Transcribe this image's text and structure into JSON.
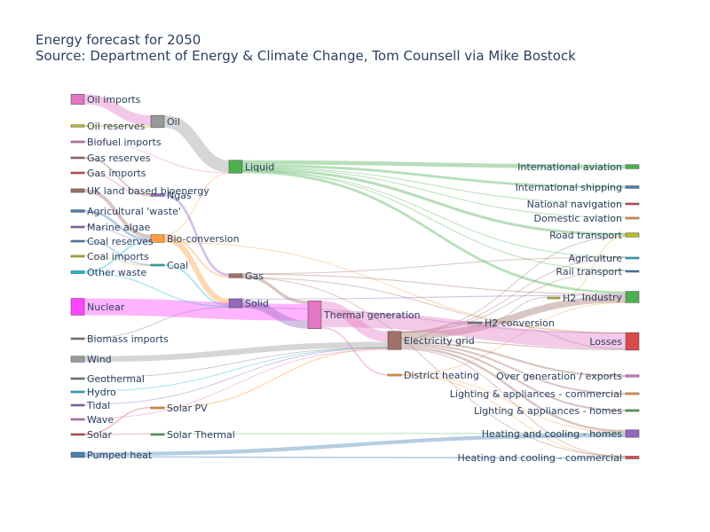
{
  "title": "Energy forecast for 2050",
  "subtitle": "Source: Department of Energy & Climate Change, Tom Counsell via Mike Bostock",
  "chart_data": {
    "type": "sankey",
    "units": "TWh",
    "nodes": [
      {
        "name": "Agricultural 'waste'",
        "color": "#4682b4"
      },
      {
        "name": "Bio-conversion",
        "color": "#ff9e3d"
      },
      {
        "name": "Liquid",
        "color": "#4caf50"
      },
      {
        "name": "Losses",
        "color": "#d94a4a"
      },
      {
        "name": "Solid",
        "color": "#9467bd"
      },
      {
        "name": "Gas",
        "color": "#a0716a"
      },
      {
        "name": "Biofuel imports",
        "color": "#e377c2"
      },
      {
        "name": "Biomass imports",
        "color": "#7f7f7f"
      },
      {
        "name": "Coal imports",
        "color": "#bcbd22"
      },
      {
        "name": "Coal",
        "color": "#17becf"
      },
      {
        "name": "Coal reserves",
        "color": "#4682b4"
      },
      {
        "name": "District heating",
        "color": "#ff9e3d"
      },
      {
        "name": "Industry",
        "color": "#4caf50"
      },
      {
        "name": "Heating and cooling - commercial",
        "color": "#d94a4a"
      },
      {
        "name": "Heating and cooling - homes",
        "color": "#9467bd"
      },
      {
        "name": "Electricity grid",
        "color": "#a0716a"
      },
      {
        "name": "Over generation / exports",
        "color": "#e377c2"
      },
      {
        "name": "H2 conversion",
        "color": "#7f7f7f"
      },
      {
        "name": "Road transport",
        "color": "#bcbd22"
      },
      {
        "name": "Agriculture",
        "color": "#17becf"
      },
      {
        "name": "Rail transport",
        "color": "#4682b4"
      },
      {
        "name": "Lighting & appliances - commercial",
        "color": "#ff9e3d"
      },
      {
        "name": "Lighting & appliances - homes",
        "color": "#4caf50"
      },
      {
        "name": "Gas imports",
        "color": "#d94a4a"
      },
      {
        "name": "Ngas",
        "color": "#9467bd"
      },
      {
        "name": "Gas reserves",
        "color": "#a0716a"
      },
      {
        "name": "Thermal generation",
        "color": "#e377c2"
      },
      {
        "name": "Geothermal",
        "color": "#7f7f7f"
      },
      {
        "name": "H2",
        "color": "#bcbd22"
      },
      {
        "name": "Hydro",
        "color": "#17becf"
      },
      {
        "name": "International shipping",
        "color": "#4682b4"
      },
      {
        "name": "Domestic aviation",
        "color": "#ff9e3d"
      },
      {
        "name": "International aviation",
        "color": "#4caf50"
      },
      {
        "name": "National navigation",
        "color": "#d94a4a"
      },
      {
        "name": "Marine algae",
        "color": "#9467bd"
      },
      {
        "name": "Nuclear",
        "color": "#ff44ff"
      },
      {
        "name": "Oil imports",
        "color": "#e377c2"
      },
      {
        "name": "Oil",
        "color": "#999999"
      },
      {
        "name": "Oil reserves",
        "color": "#bcbd22"
      },
      {
        "name": "Other waste",
        "color": "#17becf"
      },
      {
        "name": "Pumped heat",
        "color": "#4682b4"
      },
      {
        "name": "Solar PV",
        "color": "#ff9e3d"
      },
      {
        "name": "Solar Thermal",
        "color": "#4caf50"
      },
      {
        "name": "Solar",
        "color": "#d94a4a"
      },
      {
        "name": "Tidal",
        "color": "#9467bd"
      },
      {
        "name": "UK land based bioenergy",
        "color": "#a0716a"
      },
      {
        "name": "Wave",
        "color": "#e377c2"
      },
      {
        "name": "Wind",
        "color": "#999999"
      }
    ],
    "links": [
      {
        "source": 0,
        "target": 1,
        "value": 124.729
      },
      {
        "source": 1,
        "target": 2,
        "value": 0.597
      },
      {
        "source": 1,
        "target": 3,
        "value": 26.862
      },
      {
        "source": 1,
        "target": 4,
        "value": 280.322
      },
      {
        "source": 1,
        "target": 5,
        "value": 81.144
      },
      {
        "source": 6,
        "target": 2,
        "value": 35
      },
      {
        "source": 7,
        "target": 4,
        "value": 35
      },
      {
        "source": 8,
        "target": 9,
        "value": 11.606
      },
      {
        "source": 10,
        "target": 9,
        "value": 63.965
      },
      {
        "source": 9,
        "target": 4,
        "value": 75.571
      },
      {
        "source": 11,
        "target": 12,
        "value": 10.639
      },
      {
        "source": 11,
        "target": 13,
        "value": 22.505
      },
      {
        "source": 11,
        "target": 14,
        "value": 46.184
      },
      {
        "source": 15,
        "target": 16,
        "value": 104.453
      },
      {
        "source": 15,
        "target": 14,
        "value": 113.726
      },
      {
        "source": 15,
        "target": 17,
        "value": 27.14
      },
      {
        "source": 15,
        "target": 12,
        "value": 342.165
      },
      {
        "source": 15,
        "target": 18,
        "value": 37.797
      },
      {
        "source": 15,
        "target": 19,
        "value": 4.412
      },
      {
        "source": 15,
        "target": 13,
        "value": 40.858
      },
      {
        "source": 15,
        "target": 3,
        "value": 56.691
      },
      {
        "source": 15,
        "target": 20,
        "value": 7.863
      },
      {
        "source": 15,
        "target": 21,
        "value": 90.008
      },
      {
        "source": 15,
        "target": 22,
        "value": 93.494
      },
      {
        "source": 23,
        "target": 24,
        "value": 40.719
      },
      {
        "source": 25,
        "target": 24,
        "value": 82.233
      },
      {
        "source": 5,
        "target": 13,
        "value": 0.129
      },
      {
        "source": 5,
        "target": 3,
        "value": 1.401
      },
      {
        "source": 5,
        "target": 26,
        "value": 151.891
      },
      {
        "source": 5,
        "target": 19,
        "value": 2.096
      },
      {
        "source": 5,
        "target": 12,
        "value": 48.58
      },
      {
        "source": 27,
        "target": 15,
        "value": 7.013
      },
      {
        "source": 17,
        "target": 28,
        "value": 20.897
      },
      {
        "source": 17,
        "target": 3,
        "value": 6.242
      },
      {
        "source": 28,
        "target": 18,
        "value": 20.897
      },
      {
        "source": 29,
        "target": 15,
        "value": 6.995
      },
      {
        "source": 2,
        "target": 12,
        "value": 121.066
      },
      {
        "source": 2,
        "target": 30,
        "value": 128.69
      },
      {
        "source": 2,
        "target": 18,
        "value": 135.835
      },
      {
        "source": 2,
        "target": 31,
        "value": 14.458
      },
      {
        "source": 2,
        "target": 32,
        "value": 206.267
      },
      {
        "source": 2,
        "target": 19,
        "value": 3.64
      },
      {
        "source": 2,
        "target": 33,
        "value": 33.218
      },
      {
        "source": 2,
        "target": 20,
        "value": 4.413
      },
      {
        "source": 34,
        "target": 1,
        "value": 4.375
      },
      {
        "source": 24,
        "target": 5,
        "value": 122.952
      },
      {
        "source": 35,
        "target": 26,
        "value": 839.978
      },
      {
        "source": 36,
        "target": 37,
        "value": 504.287
      },
      {
        "source": 38,
        "target": 37,
        "value": 107.703
      },
      {
        "source": 37,
        "target": 2,
        "value": 611.99
      },
      {
        "source": 39,
        "target": 4,
        "value": 56.587
      },
      {
        "source": 39,
        "target": 1,
        "value": 77.81
      },
      {
        "source": 40,
        "target": 14,
        "value": 193.026
      },
      {
        "source": 40,
        "target": 13,
        "value": 70.672
      },
      {
        "source": 41,
        "target": 15,
        "value": 59.901
      },
      {
        "source": 42,
        "target": 14,
        "value": 19.263
      },
      {
        "source": 43,
        "target": 42,
        "value": 19.263
      },
      {
        "source": 43,
        "target": 41,
        "value": 59.901
      },
      {
        "source": 43,
        "target": 11,
        "value": 0.0
      },
      {
        "source": 44,
        "target": 15,
        "value": 9.452
      },
      {
        "source": 45,
        "target": 1,
        "value": 182.01
      },
      {
        "source": 46,
        "target": 15,
        "value": 19.013
      },
      {
        "source": 47,
        "target": 15,
        "value": 289.366
      },
      {
        "source": 4,
        "target": 12,
        "value": 46.477
      },
      {
        "source": 4,
        "target": 3,
        "value": 4.231
      },
      {
        "source": 4,
        "target": 26,
        "value": 400.0
      },
      {
        "source": 26,
        "target": 3,
        "value": 787.129
      },
      {
        "source": 26,
        "target": 15,
        "value": 525.531
      },
      {
        "source": 26,
        "target": 11,
        "value": 79.329
      },
      {
        "source": 2,
        "target": 11,
        "value": 0.0
      }
    ]
  }
}
